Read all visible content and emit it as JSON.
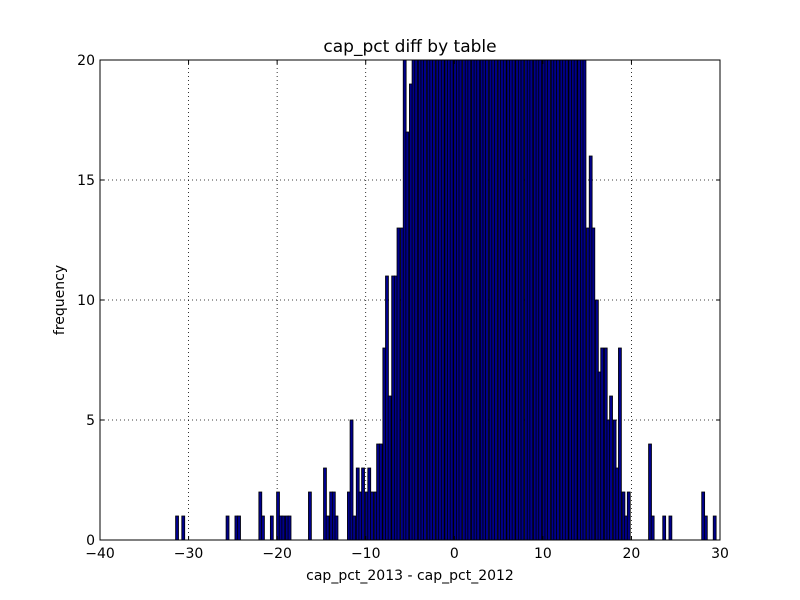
{
  "chart_data": {
    "type": "bar",
    "title": "cap_pct diff by table",
    "xlabel": "cap_pct_2013 - cap_pct_2012",
    "ylabel": "frequency",
    "xlim": [
      -40,
      30
    ],
    "ylim": [
      0,
      20
    ],
    "xticks": [
      "−40",
      "−30",
      "−20",
      "−10",
      "0",
      "10",
      "20",
      "30"
    ],
    "yticks": [
      "0",
      "5",
      "10",
      "15",
      "20"
    ],
    "grid": true,
    "bar_color": "#00008b",
    "bin_width": 0.33,
    "bin_centers": [
      -31.3,
      -30.6,
      -25.6,
      -24.6,
      -24.3,
      -21.9,
      -21.6,
      -20.6,
      -19.9,
      -19.6,
      -19.3,
      -18.9,
      -18.6,
      -16.3,
      -14.6,
      -14.3,
      -13.9,
      -13.6,
      -13.3,
      -11.9,
      -11.6,
      -11.3,
      -10.9,
      -10.6,
      -10.3,
      -9.9,
      -9.6,
      -9.3,
      -8.9,
      -8.6,
      -8.3,
      -7.9,
      -7.6,
      -7.3,
      -6.9,
      -6.6,
      -6.3,
      -5.9,
      -5.6,
      -5.3,
      -4.9,
      -4.6,
      -4.3,
      -3.9,
      -3.6,
      -3.3,
      -2.9,
      -2.6,
      -2.3,
      -1.9,
      -1.6,
      -1.3,
      -0.9,
      -0.6,
      -0.3,
      0.1,
      0.4,
      0.7,
      1.1,
      1.4,
      1.7,
      2.1,
      2.4,
      2.7,
      3.1,
      3.4,
      3.7,
      4.1,
      4.4,
      4.7,
      5.1,
      5.4,
      5.7,
      6.1,
      6.4,
      6.7,
      7.1,
      7.4,
      7.7,
      8.1,
      8.4,
      8.7,
      9.1,
      9.4,
      9.7,
      10.1,
      10.4,
      10.7,
      11.1,
      11.4,
      11.7,
      12.1,
      12.4,
      12.7,
      13.1,
      13.4,
      13.7,
      14.1,
      14.4,
      14.7,
      15.1,
      15.4,
      15.7,
      16.1,
      16.4,
      16.7,
      17.1,
      17.4,
      17.7,
      18.1,
      18.4,
      18.7,
      19.1,
      19.4,
      19.7,
      22.1,
      22.4,
      23.7,
      24.4,
      28.1,
      28.4,
      29.4
    ],
    "values": [
      1,
      1,
      1,
      1,
      1,
      2,
      1,
      1,
      2,
      1,
      1,
      1,
      1,
      2,
      3,
      1,
      2,
      2,
      1,
      2,
      5,
      1,
      3,
      2,
      3,
      2,
      3,
      2,
      2,
      4,
      4,
      8,
      11,
      6,
      11,
      11,
      13,
      13,
      20,
      17,
      19,
      20,
      20,
      20,
      20,
      20,
      20,
      20,
      20,
      20,
      20,
      20,
      20,
      20,
      20,
      20,
      20,
      20,
      20,
      20,
      20,
      20,
      20,
      20,
      20,
      20,
      20,
      20,
      20,
      20,
      20,
      20,
      20,
      20,
      20,
      20,
      20,
      20,
      20,
      20,
      20,
      20,
      20,
      20,
      20,
      20,
      20,
      20,
      20,
      20,
      20,
      20,
      20,
      20,
      20,
      20,
      20,
      20,
      20,
      20,
      13,
      16,
      13,
      10,
      7,
      8,
      8,
      5,
      6,
      5,
      3,
      8,
      2,
      1,
      2,
      4,
      1,
      1,
      1,
      2,
      1,
      1,
      1,
      1
    ]
  }
}
